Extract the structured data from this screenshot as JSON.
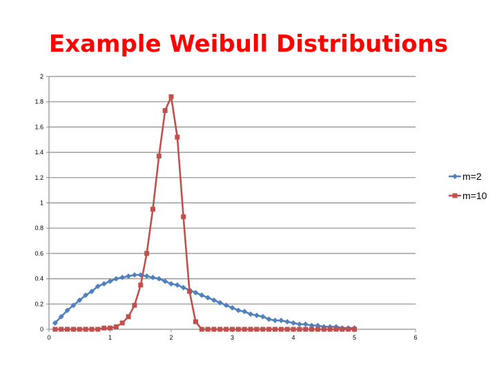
{
  "chart_data": {
    "type": "line",
    "title": "Example Weibull Distributions",
    "xlabel": "",
    "ylabel": "",
    "xlim": [
      0,
      6
    ],
    "ylim": [
      0,
      2
    ],
    "xticks": [
      "0",
      "1",
      "2",
      "3",
      "4",
      "5",
      "6"
    ],
    "yticks": [
      "0",
      "0.2",
      "0.4",
      "0.6",
      "0.8",
      "1",
      "1.2",
      "1.4",
      "1.6",
      "1.8",
      "2"
    ],
    "grid": "horizontal",
    "legend_position": "right",
    "series": [
      {
        "name": "m=2",
        "color": "#4f81bd",
        "marker": "diamond",
        "x": [
          0.1,
          0.2,
          0.3,
          0.4,
          0.5,
          0.6,
          0.7,
          0.8,
          0.9,
          1.0,
          1.1,
          1.2,
          1.3,
          1.4,
          1.5,
          1.6,
          1.7,
          1.8,
          1.9,
          2.0,
          2.1,
          2.2,
          2.3,
          2.4,
          2.5,
          2.6,
          2.7,
          2.8,
          2.9,
          3.0,
          3.1,
          3.2,
          3.3,
          3.4,
          3.5,
          3.6,
          3.7,
          3.8,
          3.9,
          4.0,
          4.1,
          4.2,
          4.3,
          4.4,
          4.5,
          4.6,
          4.7,
          4.8,
          4.9,
          5.0
        ],
        "values": [
          0.05,
          0.1,
          0.15,
          0.19,
          0.23,
          0.27,
          0.3,
          0.34,
          0.36,
          0.38,
          0.4,
          0.41,
          0.42,
          0.43,
          0.43,
          0.42,
          0.41,
          0.4,
          0.38,
          0.36,
          0.35,
          0.33,
          0.31,
          0.29,
          0.27,
          0.25,
          0.23,
          0.21,
          0.19,
          0.17,
          0.15,
          0.14,
          0.12,
          0.11,
          0.1,
          0.08,
          0.07,
          0.07,
          0.06,
          0.05,
          0.04,
          0.04,
          0.03,
          0.03,
          0.02,
          0.02,
          0.02,
          0.01,
          0.01,
          0.01
        ]
      },
      {
        "name": "m=10",
        "color": "#c0504d",
        "marker": "square",
        "x": [
          0.1,
          0.2,
          0.3,
          0.4,
          0.5,
          0.6,
          0.7,
          0.8,
          0.9,
          1.0,
          1.1,
          1.2,
          1.3,
          1.4,
          1.5,
          1.6,
          1.7,
          1.8,
          1.9,
          2.0,
          2.1,
          2.2,
          2.3,
          2.4,
          2.5,
          2.6,
          2.7,
          2.8,
          2.9,
          3.0,
          3.1,
          3.2,
          3.3,
          3.4,
          3.5,
          3.6,
          3.7,
          3.8,
          3.9,
          4.0,
          4.1,
          4.2,
          4.3,
          4.4,
          4.5,
          4.6,
          4.7,
          4.8,
          4.9,
          5.0
        ],
        "values": [
          0,
          0,
          0,
          0,
          0,
          0,
          0,
          0,
          0.01,
          0.01,
          0.02,
          0.05,
          0.1,
          0.19,
          0.35,
          0.6,
          0.95,
          1.37,
          1.73,
          1.84,
          1.52,
          0.89,
          0.3,
          0.06,
          0,
          0,
          0,
          0,
          0,
          0,
          0,
          0,
          0,
          0,
          0,
          0,
          0,
          0,
          0,
          0,
          0,
          0,
          0,
          0,
          0,
          0,
          0,
          0,
          0,
          0
        ]
      }
    ]
  }
}
